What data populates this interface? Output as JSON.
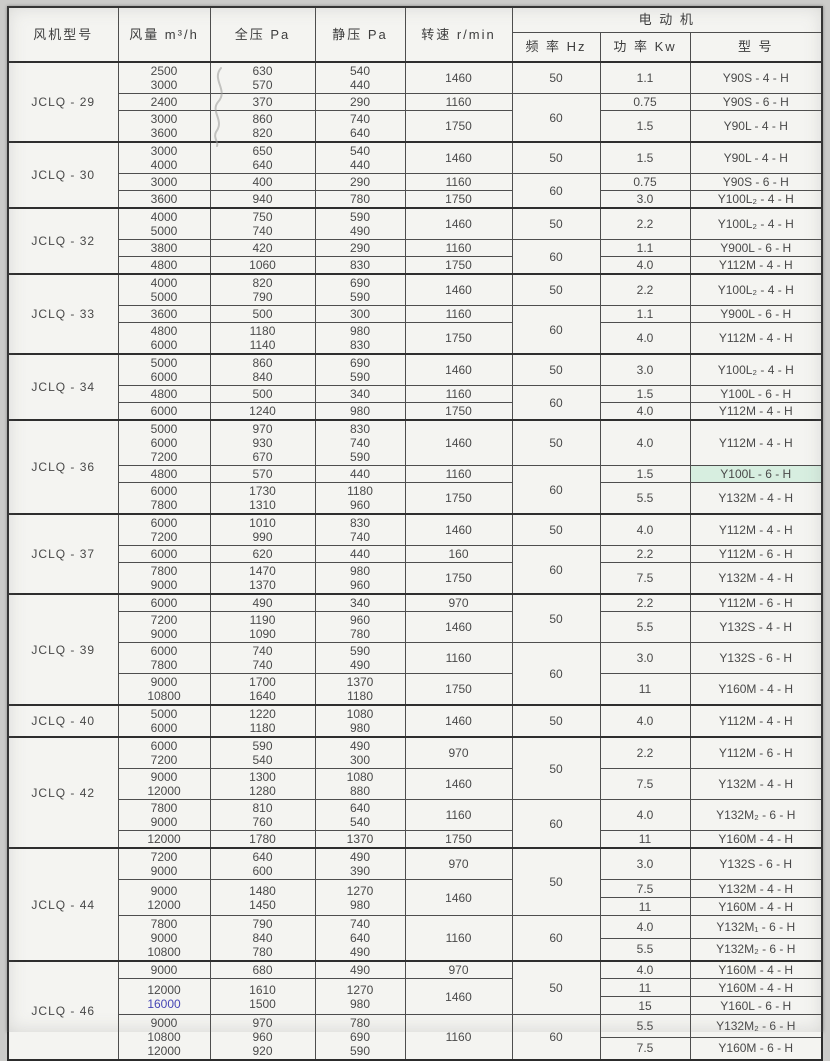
{
  "accents": {
    "highlight_mint": "#d7eee0",
    "highlight_blue": "#4646b4",
    "pen_mark_gray": "#9a9a98"
  },
  "table": {
    "header": {
      "fan_model": "风机型号",
      "flow": "风量 m³/h",
      "total_pressure": "全压 Pa",
      "static_pressure": "静压 Pa",
      "speed": "转速 r/min",
      "motor_group": "电  动  机",
      "frequency": "频 率 Hz",
      "power": "功 率 Kw",
      "motor_model": "型  号"
    },
    "groups": [
      {
        "model": "JCLQ - 29",
        "rows": [
          {
            "flow": [
              "2500",
              "3000"
            ],
            "total": [
              "630",
              "570"
            ],
            "static": [
              "540",
              "440"
            ],
            "speed": "1460",
            "freq": "50",
            "freq_span": 1,
            "pm": [
              {
                "p": "1.1",
                "m": "Y90S - 4 - H"
              }
            ]
          },
          {
            "flow": [
              "2400"
            ],
            "total": [
              "370"
            ],
            "static": [
              "290"
            ],
            "speed": "1160",
            "freq": "60",
            "freq_span": 2,
            "pm": [
              {
                "p": "0.75",
                "m": "Y90S - 6 - H"
              }
            ]
          },
          {
            "flow": [
              "3000",
              "3600"
            ],
            "total": [
              "860",
              "820"
            ],
            "static": [
              "740",
              "640"
            ],
            "speed": "1750",
            "pm": [
              {
                "p": "1.5",
                "m": "Y90L - 4 - H"
              }
            ]
          }
        ]
      },
      {
        "model": "JCLQ - 30",
        "rows": [
          {
            "flow": [
              "3000",
              "4000"
            ],
            "total": [
              "650",
              "640"
            ],
            "static": [
              "540",
              "440"
            ],
            "speed": "1460",
            "freq": "50",
            "freq_span": 1,
            "pm": [
              {
                "p": "1.5",
                "m": "Y90L - 4 - H"
              }
            ]
          },
          {
            "flow": [
              "3000"
            ],
            "total": [
              "400"
            ],
            "static": [
              "290"
            ],
            "speed": "1160",
            "freq": "60",
            "freq_span": 2,
            "pm": [
              {
                "p": "0.75",
                "m": "Y90S - 6 - H"
              }
            ]
          },
          {
            "flow": [
              "3600"
            ],
            "total": [
              "940"
            ],
            "static": [
              "780"
            ],
            "speed": "1750",
            "pm": [
              {
                "p": "3.0",
                "m": "Y100L₂ - 4 - H"
              }
            ]
          }
        ]
      },
      {
        "model": "JCLQ - 32",
        "rows": [
          {
            "flow": [
              "4000",
              "5000"
            ],
            "total": [
              "750",
              "740"
            ],
            "static": [
              "590",
              "490"
            ],
            "speed": "1460",
            "freq": "50",
            "freq_span": 1,
            "pm": [
              {
                "p": "2.2",
                "m": "Y100L₂ - 4 - H"
              }
            ]
          },
          {
            "flow": [
              "3800"
            ],
            "total": [
              "420"
            ],
            "static": [
              "290"
            ],
            "speed": "1160",
            "freq": "60",
            "freq_span": 2,
            "pm": [
              {
                "p": "1.1",
                "m": "Y900L - 6 - H"
              }
            ]
          },
          {
            "flow": [
              "4800"
            ],
            "total": [
              "1060"
            ],
            "static": [
              "830"
            ],
            "speed": "1750",
            "pm": [
              {
                "p": "4.0",
                "m": "Y112M - 4 - H"
              }
            ]
          }
        ]
      },
      {
        "model": "JCLQ - 33",
        "rows": [
          {
            "flow": [
              "4000",
              "5000"
            ],
            "total": [
              "820",
              "790"
            ],
            "static": [
              "690",
              "590"
            ],
            "speed": "1460",
            "freq": "50",
            "freq_span": 1,
            "pm": [
              {
                "p": "2.2",
                "m": "Y100L₂ - 4 - H"
              }
            ]
          },
          {
            "flow": [
              "3600"
            ],
            "total": [
              "500"
            ],
            "static": [
              "300"
            ],
            "speed": "1160",
            "freq": "60",
            "freq_span": 2,
            "pm": [
              {
                "p": "1.1",
                "m": "Y900L - 6 - H"
              }
            ]
          },
          {
            "flow": [
              "4800",
              "6000"
            ],
            "total": [
              "1180",
              "1140"
            ],
            "static": [
              "980",
              "830"
            ],
            "speed": "1750",
            "pm": [
              {
                "p": "4.0",
                "m": "Y112M - 4 - H"
              }
            ]
          }
        ]
      },
      {
        "model": "JCLQ - 34",
        "rows": [
          {
            "flow": [
              "5000",
              "6000"
            ],
            "total": [
              "860",
              "840"
            ],
            "static": [
              "690",
              "590"
            ],
            "speed": "1460",
            "freq": "50",
            "freq_span": 1,
            "pm": [
              {
                "p": "3.0",
                "m": "Y100L₂ - 4 - H"
              }
            ]
          },
          {
            "flow": [
              "4800"
            ],
            "total": [
              "500"
            ],
            "static": [
              "340"
            ],
            "speed": "1160",
            "freq": "60",
            "freq_span": 2,
            "pm": [
              {
                "p": "1.5",
                "m": "Y100L - 6 - H"
              }
            ]
          },
          {
            "flow": [
              "6000"
            ],
            "total": [
              "1240"
            ],
            "static": [
              "980"
            ],
            "speed": "1750",
            "pm": [
              {
                "p": "4.0",
                "m": "Y112M - 4 - H"
              }
            ]
          }
        ]
      },
      {
        "model": "JCLQ - 36",
        "rows": [
          {
            "flow": [
              "5000",
              "6000",
              "7200"
            ],
            "total": [
              "970",
              "930",
              "670"
            ],
            "static": [
              "830",
              "740",
              "590"
            ],
            "speed": "1460",
            "freq": "50",
            "freq_span": 1,
            "pm": [
              {
                "p": "4.0",
                "m": "Y112M - 4 - H"
              }
            ]
          },
          {
            "flow": [
              "4800"
            ],
            "total": [
              "570"
            ],
            "static": [
              "440"
            ],
            "speed": "1160",
            "freq": "60",
            "freq_span": 2,
            "pm": [
              {
                "p": "1.5",
                "m": "Y100L - 6 - H",
                "hl": "mint"
              }
            ]
          },
          {
            "flow": [
              "6000",
              "7800"
            ],
            "total": [
              "1730",
              "1310"
            ],
            "static": [
              "1180",
              "960"
            ],
            "speed": "1750",
            "pm": [
              {
                "p": "5.5",
                "m": "Y132M - 4 - H"
              }
            ]
          }
        ]
      },
      {
        "model": "JCLQ - 37",
        "rows": [
          {
            "flow": [
              "6000",
              "7200"
            ],
            "total": [
              "1010",
              "990"
            ],
            "static": [
              "830",
              "740"
            ],
            "speed": "1460",
            "freq": "50",
            "freq_span": 1,
            "pm": [
              {
                "p": "4.0",
                "m": "Y112M - 4 - H"
              }
            ]
          },
          {
            "flow": [
              "6000"
            ],
            "total": [
              "620"
            ],
            "static": [
              "440"
            ],
            "speed": "160",
            "freq": "60",
            "freq_span": 2,
            "pm": [
              {
                "p": "2.2",
                "m": "Y112M - 6 - H"
              }
            ]
          },
          {
            "flow": [
              "7800",
              "9000"
            ],
            "total": [
              "1470",
              "1370"
            ],
            "static": [
              "980",
              "960"
            ],
            "speed": "1750",
            "pm": [
              {
                "p": "7.5",
                "m": "Y132M - 4 - H"
              }
            ]
          }
        ]
      },
      {
        "model": "JCLQ - 39",
        "rows": [
          {
            "flow": [
              "6000"
            ],
            "total": [
              "490"
            ],
            "static": [
              "340"
            ],
            "speed": "970",
            "freq": "50",
            "freq_span": 2,
            "pm": [
              {
                "p": "2.2",
                "m": "Y112M - 6 - H"
              }
            ]
          },
          {
            "flow": [
              "7200",
              "9000"
            ],
            "total": [
              "1190",
              "1090"
            ],
            "static": [
              "960",
              "780"
            ],
            "speed": "1460",
            "pm": [
              {
                "p": "5.5",
                "m": "Y132S - 4 - H"
              }
            ]
          },
          {
            "flow": [
              "6000",
              "7800"
            ],
            "total": [
              "740",
              "740"
            ],
            "static": [
              "590",
              "490"
            ],
            "speed": "1160",
            "freq": "60",
            "freq_span": 2,
            "pm": [
              {
                "p": "3.0",
                "m": "Y132S - 6 - H"
              }
            ]
          },
          {
            "flow": [
              "9000",
              "10800"
            ],
            "total": [
              "1700",
              "1640"
            ],
            "static": [
              "1370",
              "1180"
            ],
            "speed": "1750",
            "pm": [
              {
                "p": "11",
                "m": "Y160M - 4 - H"
              }
            ]
          }
        ]
      },
      {
        "model": "JCLQ - 40",
        "rows": [
          {
            "flow": [
              "5000",
              "6000"
            ],
            "total": [
              "1220",
              "1180"
            ],
            "static": [
              "1080",
              "980"
            ],
            "speed": "1460",
            "freq": "50",
            "freq_span": 1,
            "pm": [
              {
                "p": "4.0",
                "m": "Y112M - 4 - H"
              }
            ]
          }
        ]
      },
      {
        "model": "JCLQ - 42",
        "rows": [
          {
            "flow": [
              "6000",
              "7200"
            ],
            "total": [
              "590",
              "540"
            ],
            "static": [
              "490",
              "300"
            ],
            "speed": "970",
            "freq": "50",
            "freq_span": 2,
            "pm": [
              {
                "p": "2.2",
                "m": "Y112M - 6 - H"
              }
            ]
          },
          {
            "flow": [
              "9000",
              "12000"
            ],
            "total": [
              "1300",
              "1280"
            ],
            "static": [
              "1080",
              "880"
            ],
            "speed": "1460",
            "pm": [
              {
                "p": "7.5",
                "m": "Y132M - 4 - H"
              }
            ]
          },
          {
            "flow": [
              "7800",
              "9000"
            ],
            "total": [
              "810",
              "760"
            ],
            "static": [
              "640",
              "540"
            ],
            "speed": "1160",
            "freq": "60",
            "freq_span": 2,
            "pm": [
              {
                "p": "4.0",
                "m": "Y132M₂ - 6 - H"
              }
            ]
          },
          {
            "flow": [
              "12000"
            ],
            "total": [
              "1780"
            ],
            "static": [
              "1370"
            ],
            "speed": "1750",
            "pm": [
              {
                "p": "11",
                "m": "Y160M - 4 - H"
              }
            ]
          }
        ]
      },
      {
        "model": "JCLQ - 44",
        "rows": [
          {
            "flow": [
              "7200",
              "9000"
            ],
            "total": [
              "640",
              "600"
            ],
            "static": [
              "490",
              "390"
            ],
            "speed": "970",
            "freq": "50",
            "freq_span": 2,
            "pm": [
              {
                "p": "3.0",
                "m": "Y132S - 6 - H"
              }
            ]
          },
          {
            "flow": [
              "9000",
              "12000"
            ],
            "total": [
              "1480",
              "1450"
            ],
            "static": [
              "1270",
              "980"
            ],
            "speed": "1460",
            "pm": [
              {
                "p": "7.5",
                "m": "Y132M - 4 - H"
              },
              {
                "p": "11",
                "m": "Y160M - 4 - H"
              }
            ]
          },
          {
            "flow": [
              "7800",
              "9000",
              "10800"
            ],
            "total": [
              "790",
              "840",
              "780"
            ],
            "static": [
              "740",
              "640",
              "490"
            ],
            "speed": "1160",
            "freq": "60",
            "freq_span": 1,
            "pm": [
              {
                "p": "4.0",
                "m": "Y132M₁ - 6 - H"
              },
              {
                "p": "5.5",
                "m": "Y132M₂ - 6 - H"
              }
            ]
          }
        ]
      },
      {
        "model": "JCLQ - 46",
        "rows": [
          {
            "flow": [
              "9000"
            ],
            "total": [
              "680"
            ],
            "static": [
              "490"
            ],
            "speed": "970",
            "freq": "50",
            "freq_span": 2,
            "pm": [
              {
                "p": "4.0",
                "m": "Y160M - 4 - H"
              }
            ]
          },
          {
            "flow": [
              "12000",
              "16000"
            ],
            "flow_blue_index": 1,
            "total": [
              "1610",
              "1500"
            ],
            "static": [
              "1270",
              "980"
            ],
            "speed": "1460",
            "pm": [
              {
                "p": "11",
                "m": "Y160M - 4 - H"
              },
              {
                "p": "15",
                "m": "Y160L - 6 - H"
              }
            ]
          },
          {
            "flow": [
              "9000",
              "10800",
              "12000"
            ],
            "total": [
              "970",
              "960",
              "920"
            ],
            "static": [
              "780",
              "690",
              "590"
            ],
            "speed": "1160",
            "freq": "60",
            "freq_span": 1,
            "pm": [
              {
                "p": "5.5",
                "m": "Y132M₂ - 6 - H"
              },
              {
                "p": "7.5",
                "m": "Y160M - 6 - H"
              }
            ]
          }
        ]
      }
    ]
  }
}
